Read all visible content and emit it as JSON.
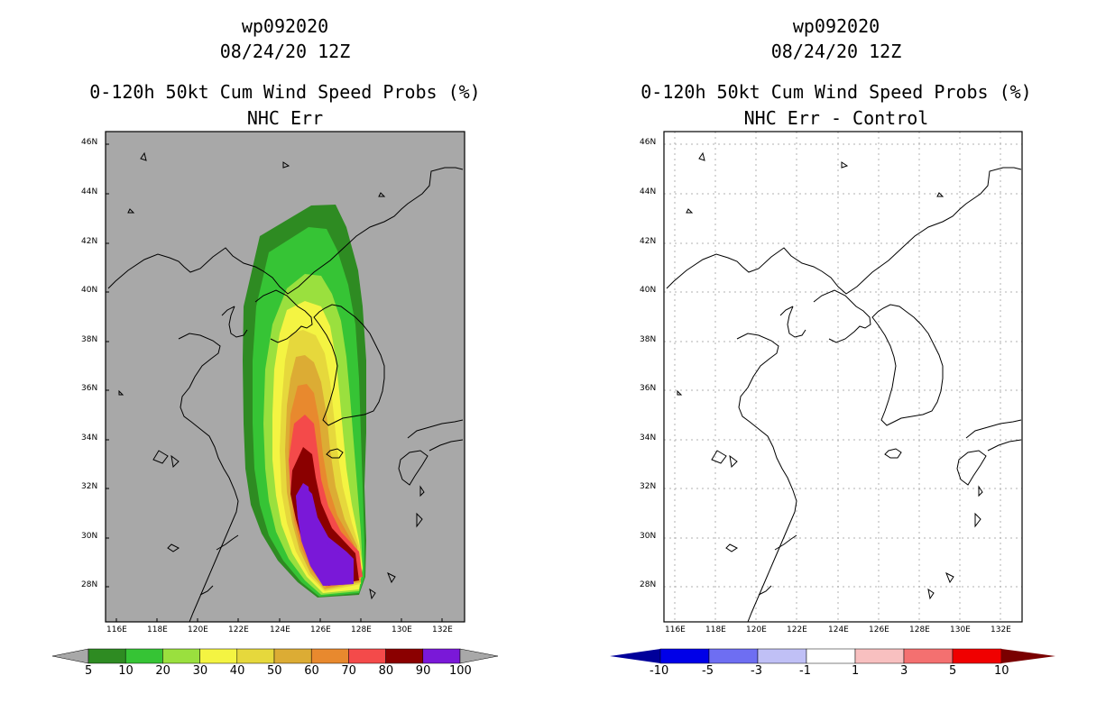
{
  "left": {
    "title1": "wp092020",
    "title2": "08/24/20 12Z",
    "title3": "0-120h 50kt Cum Wind Speed Probs (%)",
    "title4": "NHC Err",
    "background_color": "#a8a8a8",
    "colorbar_labels": [
      "5",
      "10",
      "20",
      "30",
      "40",
      "50",
      "60",
      "70",
      "80",
      "90",
      "100"
    ],
    "colorbar_colors": [
      "#2e8b22",
      "#36c435",
      "#9ae03e",
      "#f4f442",
      "#e6d83c",
      "#dcac34",
      "#e8892e",
      "#f44a4a",
      "#8b0000",
      "#7a18d8"
    ],
    "contour_colors": [
      "#2e8b22",
      "#36c435",
      "#9ae03e",
      "#f4f442",
      "#e6d83c",
      "#dcac34",
      "#e8892e",
      "#f44a4a",
      "#8b0000",
      "#7a18d8"
    ]
  },
  "right": {
    "title1": "wp092020",
    "title2": "08/24/20 12Z",
    "title3": "0-120h 50kt Cum Wind Speed Probs (%)",
    "title4": "NHC Err - Control",
    "background_color": "#ffffff",
    "colorbar_labels": [
      "-10",
      "-5",
      "-3",
      "-1",
      "1",
      "3",
      "5",
      "10"
    ],
    "colorbar_colors": [
      "#0000e8",
      "#6e6ef2",
      "#c0c0f6",
      "#ffffff",
      "#f8c0c0",
      "#f47070",
      "#f00000"
    ],
    "colorbar_end_low": "#00009a",
    "colorbar_end_high": "#7a0000"
  },
  "axes": {
    "lat_labels": [
      "46N",
      "44N",
      "42N",
      "40N",
      "38N",
      "36N",
      "34N",
      "32N",
      "30N",
      "28N"
    ],
    "lon_labels": [
      "116E",
      "118E",
      "120E",
      "122E",
      "124E",
      "126E",
      "128E",
      "130E",
      "132E"
    ]
  }
}
